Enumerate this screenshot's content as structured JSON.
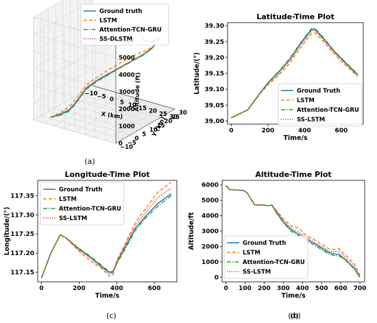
{
  "colors": {
    "ground_truth": "#1f77b4",
    "lstm": "#ff7f0e",
    "tcn_gru": "#2ca02c",
    "ss": "#d62728"
  },
  "chart_data": [
    {
      "id": "a",
      "type": "line3d",
      "panel_label": "(a)",
      "xlabel": "X (km)",
      "ylabel": "Y (km)",
      "zlabel": "Altitude (ft)",
      "x_ticks": [
        "−10",
        "−5",
        "0",
        "5",
        "10",
        "15",
        "20",
        "25",
        "30"
      ],
      "y_ticks": [
        "−10",
        "−5",
        "0",
        "5",
        "10",
        "15",
        "20",
        "25",
        "30"
      ],
      "z_ticks": [
        "0",
        "1000",
        "2000",
        "3000",
        "4000",
        "5000",
        "6000"
      ],
      "xlim": [
        -10,
        30
      ],
      "ylim": [
        -10,
        30
      ],
      "zlim": [
        0,
        6000
      ],
      "grid": true,
      "legend_position": "top-left",
      "legend": [
        {
          "name": "Ground truth",
          "style": "solid",
          "color": "#1f77b4"
        },
        {
          "name": "LSTM",
          "style": "dashed",
          "color": "#ff7f0e"
        },
        {
          "name": "Attention-TCN-GRU",
          "style": "dashdot",
          "color": "#2ca02c"
        },
        {
          "name": "SS-DLSTM",
          "style": "dotted",
          "color": "#d62728"
        }
      ],
      "series": [
        {
          "name": "Ground truth",
          "x": [
            -6,
            -3,
            0,
            1,
            1.5,
            2,
            4,
            6,
            8,
            10,
            14,
            18,
            22,
            25,
            28,
            30,
            30,
            30,
            28,
            26
          ],
          "y": [
            -4,
            -2,
            0,
            3,
            6,
            9,
            13,
            17,
            20,
            23,
            25,
            26,
            26,
            25,
            22,
            18,
            14,
            10,
            8,
            5
          ],
          "z": [
            0,
            150,
            400,
            700,
            1000,
            1300,
            1600,
            1800,
            2000,
            2200,
            2600,
            3000,
            3500,
            4000,
            4500,
            4700,
            4700,
            5000,
            5500,
            6000
          ]
        },
        {
          "name": "LSTM",
          "x": [
            -6,
            -3,
            0,
            1,
            1.5,
            2,
            4,
            6,
            8.5,
            10.5,
            14.5,
            18.5,
            22.5,
            25.5,
            28.5,
            30.5,
            30.5,
            30,
            28,
            26
          ],
          "y": [
            -4,
            -2,
            0,
            3,
            6,
            9,
            13,
            17,
            20,
            23,
            25,
            26,
            26,
            25,
            22,
            18,
            14,
            10,
            8,
            5
          ],
          "z": [
            0,
            250,
            600,
            900,
            1200,
            1500,
            1800,
            2050,
            2300,
            2500,
            2900,
            3200,
            3600,
            4100,
            4500,
            4700,
            4700,
            5000,
            5500,
            6000
          ]
        },
        {
          "name": "Attention-TCN-GRU",
          "x": [
            -6,
            -3,
            0,
            1,
            1.5,
            2,
            4,
            6,
            7.8,
            9.8,
            13.8,
            17.8,
            21.8,
            24.8,
            27.8,
            29.8,
            29.8,
            30,
            28,
            26
          ],
          "y": [
            -4,
            -2,
            0,
            3,
            6,
            9,
            13,
            17,
            20,
            23,
            25,
            26,
            26,
            25,
            22,
            18,
            14,
            10,
            8,
            5
          ],
          "z": [
            0,
            100,
            350,
            650,
            950,
            1250,
            1550,
            1750,
            1950,
            2150,
            2550,
            2950,
            3450,
            3950,
            4450,
            4700,
            4700,
            5000,
            5500,
            6000
          ]
        },
        {
          "name": "SS-DLSTM",
          "x": [
            -6,
            -3,
            0,
            1,
            1.5,
            2,
            4,
            6,
            8.2,
            10.2,
            14.2,
            18.2,
            22.2,
            25.2,
            28.2,
            30.2,
            30.2,
            30,
            28,
            26
          ],
          "y": [
            -4,
            -2,
            0,
            3,
            6,
            9,
            13,
            17,
            20,
            23,
            25,
            26,
            26,
            25,
            22,
            18,
            14,
            10,
            8,
            5
          ],
          "z": [
            0,
            180,
            450,
            750,
            1050,
            1350,
            1650,
            1850,
            2050,
            2250,
            2650,
            3050,
            3550,
            4050,
            4550,
            4700,
            4700,
            5000,
            5500,
            6000
          ]
        }
      ]
    },
    {
      "id": "b",
      "type": "line",
      "panel_label": "(b)",
      "title": "Latitude-Time Plot",
      "xlabel": "Time/s",
      "ylabel": "Latitude/(°)",
      "xlim": [
        -20,
        720
      ],
      "ylim": [
        38.99,
        39.31
      ],
      "x_ticks": [
        0,
        200,
        400,
        600
      ],
      "y_ticks": [
        39.0,
        39.05,
        39.1,
        39.15,
        39.2,
        39.25,
        39.3
      ],
      "y_tick_labels": [
        "39.00",
        "39.05",
        "39.10",
        "39.15",
        "39.20",
        "39.25",
        "39.30"
      ],
      "grid": false,
      "legend_position": "bottom-right",
      "series": [
        {
          "name": "Ground Truth",
          "style": "solid",
          "color": "#1f77b4",
          "x": [
            0,
            90,
            160,
            200,
            260,
            320,
            380,
            420,
            440,
            460,
            500,
            560,
            620,
            690
          ],
          "y": [
            39.01,
            39.035,
            39.09,
            39.12,
            39.155,
            39.195,
            39.245,
            39.275,
            39.29,
            39.287,
            39.262,
            39.22,
            39.185,
            39.145
          ]
        },
        {
          "name": "LSTM",
          "style": "dashed",
          "color": "#ff7f0e",
          "x": [
            0,
            90,
            160,
            200,
            260,
            320,
            380,
            420,
            440,
            460,
            500,
            560,
            620,
            690
          ],
          "y": [
            39.01,
            39.035,
            39.088,
            39.113,
            39.145,
            39.183,
            39.232,
            39.262,
            39.277,
            39.277,
            39.252,
            39.212,
            39.177,
            39.14
          ]
        },
        {
          "name": "Attention-TCN-GRU",
          "style": "dashdot",
          "color": "#2ca02c",
          "x": [
            0,
            90,
            160,
            200,
            260,
            320,
            380,
            420,
            440,
            460,
            500,
            560,
            620,
            690
          ],
          "y": [
            39.01,
            39.035,
            39.09,
            39.121,
            39.157,
            39.198,
            39.248,
            39.278,
            39.293,
            39.29,
            39.265,
            39.222,
            39.187,
            39.147
          ]
        },
        {
          "name": "SS-LSTM",
          "style": "dotted",
          "color": "#d62728",
          "x": [
            0,
            90,
            160,
            200,
            260,
            320,
            380,
            420,
            440,
            460,
            500,
            560,
            620,
            690
          ],
          "y": [
            39.01,
            39.035,
            39.089,
            39.117,
            39.15,
            39.19,
            39.24,
            39.27,
            39.285,
            39.283,
            39.258,
            39.217,
            39.182,
            39.143
          ]
        }
      ]
    },
    {
      "id": "c",
      "type": "line",
      "panel_label": "(c)",
      "title": "Longitude-Time Plot",
      "xlabel": "Time/s",
      "ylabel": "Longitude/(°)",
      "xlim": [
        -20,
        720
      ],
      "ylim": [
        117.125,
        117.39
      ],
      "x_ticks": [
        0,
        200,
        400,
        600
      ],
      "y_ticks": [
        117.15,
        117.2,
        117.25,
        117.3,
        117.35
      ],
      "y_tick_labels": [
        "117.15",
        "117.20",
        "117.25",
        "117.30",
        "117.35"
      ],
      "grid": false,
      "legend_position": "top-left",
      "series": [
        {
          "name": "Ground Truth",
          "style": "solid",
          "color": "#1f77b4",
          "x": [
            0,
            50,
            100,
            130,
            200,
            260,
            320,
            360,
            380,
            400,
            450,
            500,
            560,
            620,
            690
          ],
          "y": [
            117.135,
            117.2,
            117.248,
            117.24,
            117.21,
            117.19,
            117.165,
            117.15,
            117.15,
            117.175,
            117.22,
            117.265,
            117.3,
            117.33,
            117.355
          ]
        },
        {
          "name": "LSTM",
          "style": "dashed",
          "color": "#ff7f0e",
          "x": [
            0,
            50,
            100,
            130,
            200,
            260,
            320,
            360,
            380,
            400,
            450,
            500,
            560,
            620,
            690
          ],
          "y": [
            117.135,
            117.2,
            117.248,
            117.24,
            117.205,
            117.18,
            117.16,
            117.14,
            117.142,
            117.18,
            117.23,
            117.28,
            117.32,
            117.36,
            117.385
          ]
        },
        {
          "name": "Attention-TCN-GRU",
          "style": "dashdot",
          "color": "#2ca02c",
          "x": [
            0,
            50,
            100,
            130,
            200,
            260,
            320,
            360,
            380,
            400,
            450,
            500,
            560,
            620,
            690
          ],
          "y": [
            117.135,
            117.2,
            117.248,
            117.24,
            117.212,
            117.192,
            117.168,
            117.152,
            117.152,
            117.172,
            117.215,
            117.26,
            117.295,
            117.323,
            117.35
          ]
        },
        {
          "name": "SS-LSTM",
          "style": "dotted",
          "color": "#d62728",
          "x": [
            0,
            50,
            100,
            130,
            200,
            260,
            320,
            360,
            380,
            400,
            450,
            500,
            560,
            620,
            690
          ],
          "y": [
            117.135,
            117.2,
            117.248,
            117.24,
            117.208,
            117.186,
            117.162,
            117.146,
            117.147,
            117.176,
            117.225,
            117.272,
            117.31,
            117.345,
            117.37
          ]
        }
      ]
    },
    {
      "id": "d",
      "type": "line",
      "panel_label": "(d)",
      "title": "Altitude-Time Plot",
      "xlabel": "Time/s",
      "ylabel": "Altitude/ft",
      "xlim": [
        -20,
        725
      ],
      "ylim": [
        -300,
        6300
      ],
      "x_ticks": [
        0,
        100,
        200,
        300,
        400,
        500,
        600,
        700
      ],
      "y_ticks": [
        0,
        1000,
        2000,
        3000,
        4000,
        5000,
        6000
      ],
      "y_tick_labels": [
        "0",
        "1000",
        "2000",
        "3000",
        "4000",
        "5000",
        "6000"
      ],
      "grid": false,
      "legend_position": "bottom-left",
      "series": [
        {
          "name": "Ground Truth",
          "style": "solid",
          "color": "#1f77b4",
          "x": [
            0,
            20,
            90,
            110,
            150,
            200,
            220,
            240,
            260,
            300,
            340,
            380,
            420,
            460,
            500,
            540,
            570,
            590,
            620,
            670,
            700
          ],
          "y": [
            5950,
            5700,
            5650,
            5500,
            4700,
            4700,
            4650,
            4700,
            4300,
            3600,
            3100,
            2800,
            2500,
            2200,
            1900,
            1600,
            1500,
            1500,
            1200,
            600,
            0
          ]
        },
        {
          "name": "LSTM",
          "style": "dashed",
          "color": "#ff7f0e",
          "x": [
            0,
            20,
            90,
            110,
            150,
            200,
            220,
            240,
            260,
            300,
            340,
            380,
            420,
            460,
            500,
            540,
            570,
            590,
            620,
            670,
            700
          ],
          "y": [
            5950,
            5700,
            5650,
            5500,
            4700,
            4700,
            4650,
            4700,
            4400,
            3800,
            3350,
            3200,
            2700,
            2450,
            2150,
            1850,
            1800,
            1850,
            1500,
            900,
            150
          ]
        },
        {
          "name": "Attention-TCN-GRU",
          "style": "dashdot",
          "color": "#2ca02c",
          "x": [
            0,
            20,
            90,
            110,
            150,
            200,
            220,
            240,
            260,
            300,
            340,
            380,
            420,
            460,
            500,
            540,
            570,
            590,
            620,
            670,
            700
          ],
          "y": [
            5950,
            5700,
            5650,
            5500,
            4700,
            4700,
            4650,
            4700,
            4250,
            3550,
            3000,
            2700,
            2400,
            2100,
            1800,
            1500,
            1400,
            1400,
            1150,
            550,
            -20
          ]
        },
        {
          "name": "SS-LSTM",
          "style": "dotted",
          "color": "#d62728",
          "x": [
            0,
            20,
            90,
            110,
            150,
            200,
            220,
            240,
            260,
            300,
            340,
            380,
            420,
            460,
            500,
            540,
            570,
            590,
            620,
            670,
            700
          ],
          "y": [
            5950,
            5700,
            5650,
            5500,
            4700,
            4700,
            4650,
            4700,
            4350,
            3700,
            3200,
            2950,
            2600,
            2300,
            2000,
            1700,
            1650,
            1700,
            1350,
            750,
            80
          ]
        }
      ]
    }
  ]
}
